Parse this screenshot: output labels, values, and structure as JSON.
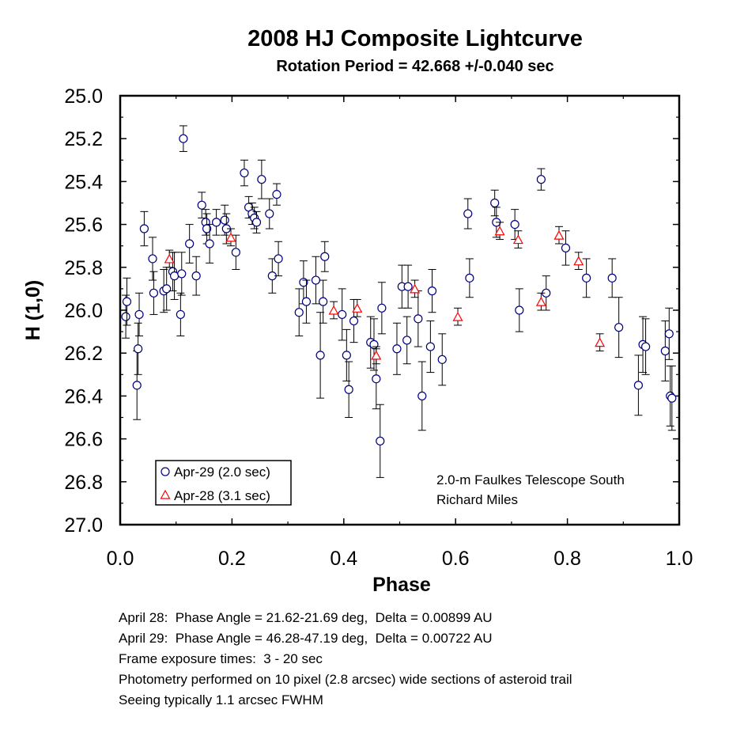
{
  "chart_data": {
    "type": "scatter",
    "title": "2008 HJ Composite Lightcurve",
    "subtitle": "Rotation Period = 42.668 +/-0.040 sec",
    "xlabel": "Phase",
    "ylabel": "H (1,0)",
    "xlim": [
      0.0,
      1.0
    ],
    "ylim": [
      27.0,
      25.0
    ],
    "y_inverted": true,
    "grid": false,
    "legend_position": "bottom-left",
    "x_ticks": [
      "0.0",
      "0.2",
      "0.4",
      "0.6",
      "0.8",
      "1.0"
    ],
    "y_ticks": [
      "25.0",
      "25.2",
      "25.4",
      "25.6",
      "25.8",
      "26.0",
      "26.2",
      "26.4",
      "26.6",
      "26.8",
      "27.0"
    ],
    "annotation": [
      "2.0-m Faulkes Telescope South",
      "Richard Miles"
    ],
    "series": [
      {
        "name": "Apr-29 (2.0 sec)",
        "marker": "circle",
        "color": "#000080",
        "points": [
          [
            0.01,
            26.03,
            0.1
          ],
          [
            0.012,
            25.96,
            0.11
          ],
          [
            0.03,
            26.35,
            0.16
          ],
          [
            0.032,
            26.18,
            0.12
          ],
          [
            0.034,
            26.02,
            0.1
          ],
          [
            0.043,
            25.62,
            0.08
          ],
          [
            0.058,
            25.76,
            0.1
          ],
          [
            0.06,
            25.92,
            0.1
          ],
          [
            0.078,
            25.91,
            0.1
          ],
          [
            0.083,
            25.9,
            0.1
          ],
          [
            0.094,
            25.82,
            0.09
          ],
          [
            0.097,
            25.84,
            0.11
          ],
          [
            0.108,
            26.02,
            0.1
          ],
          [
            0.11,
            25.83,
            0.1
          ],
          [
            0.113,
            25.2,
            0.06
          ],
          [
            0.124,
            25.69,
            0.09
          ],
          [
            0.136,
            25.84,
            0.09
          ],
          [
            0.146,
            25.51,
            0.06
          ],
          [
            0.153,
            25.59,
            0.06
          ],
          [
            0.155,
            25.62,
            0.07
          ],
          [
            0.16,
            25.69,
            0.09
          ],
          [
            0.172,
            25.59,
            0.06
          ],
          [
            0.187,
            25.58,
            0.07
          ],
          [
            0.19,
            25.62,
            0.07
          ],
          [
            0.207,
            25.73,
            0.08
          ],
          [
            0.222,
            25.36,
            0.06
          ],
          [
            0.23,
            25.52,
            0.05
          ],
          [
            0.236,
            25.55,
            0.05
          ],
          [
            0.24,
            25.57,
            0.05
          ],
          [
            0.244,
            25.59,
            0.05
          ],
          [
            0.253,
            25.39,
            0.09
          ],
          [
            0.267,
            25.55,
            0.07
          ],
          [
            0.272,
            25.84,
            0.08
          ],
          [
            0.28,
            25.46,
            0.05
          ],
          [
            0.283,
            25.76,
            0.08
          ],
          [
            0.32,
            26.01,
            0.11
          ],
          [
            0.328,
            25.87,
            0.1
          ],
          [
            0.333,
            25.96,
            0.1
          ],
          [
            0.35,
            25.86,
            0.11
          ],
          [
            0.358,
            26.21,
            0.2
          ],
          [
            0.363,
            25.96,
            0.1
          ],
          [
            0.366,
            25.75,
            0.07
          ],
          [
            0.397,
            26.02,
            0.12
          ],
          [
            0.405,
            26.21,
            0.12
          ],
          [
            0.409,
            26.37,
            0.13
          ],
          [
            0.418,
            26.05,
            0.1
          ],
          [
            0.448,
            26.15,
            0.12
          ],
          [
            0.454,
            26.16,
            0.12
          ],
          [
            0.458,
            26.32,
            0.14
          ],
          [
            0.465,
            26.61,
            0.17
          ],
          [
            0.468,
            25.99,
            0.12
          ],
          [
            0.495,
            26.18,
            0.12
          ],
          [
            0.504,
            25.89,
            0.1
          ],
          [
            0.513,
            26.14,
            0.11
          ],
          [
            0.515,
            25.89,
            0.1
          ],
          [
            0.533,
            26.04,
            0.13
          ],
          [
            0.54,
            26.4,
            0.16
          ],
          [
            0.555,
            26.17,
            0.12
          ],
          [
            0.558,
            25.91,
            0.1
          ],
          [
            0.576,
            26.23,
            0.12
          ],
          [
            0.622,
            25.55,
            0.07
          ],
          [
            0.625,
            25.85,
            0.09
          ],
          [
            0.67,
            25.5,
            0.06
          ],
          [
            0.673,
            25.59,
            0.07
          ],
          [
            0.706,
            25.6,
            0.07
          ],
          [
            0.714,
            26.0,
            0.1
          ],
          [
            0.753,
            25.39,
            0.05
          ],
          [
            0.762,
            25.92,
            0.08
          ],
          [
            0.797,
            25.71,
            0.08
          ],
          [
            0.834,
            25.85,
            0.09
          ],
          [
            0.88,
            25.85,
            0.09
          ],
          [
            0.892,
            26.08,
            0.14
          ],
          [
            0.927,
            26.35,
            0.14
          ],
          [
            0.935,
            26.16,
            0.13
          ],
          [
            0.94,
            26.17,
            0.13
          ],
          [
            0.975,
            26.19,
            0.14
          ],
          [
            0.982,
            26.11,
            0.12
          ],
          [
            0.984,
            26.4,
            0.14
          ],
          [
            0.987,
            26.41,
            0.15
          ]
        ]
      },
      {
        "name": "Apr-28 (3.1 sec)",
        "marker": "triangle",
        "color": "#ff0000",
        "points": [
          [
            0.088,
            25.76,
            0.04
          ],
          [
            0.198,
            25.66,
            0.04
          ],
          [
            0.382,
            26.0,
            0.04
          ],
          [
            0.424,
            25.99,
            0.04
          ],
          [
            0.458,
            26.21,
            0.04
          ],
          [
            0.527,
            25.9,
            0.04
          ],
          [
            0.604,
            26.03,
            0.04
          ],
          [
            0.679,
            25.63,
            0.04
          ],
          [
            0.712,
            25.67,
            0.04
          ],
          [
            0.753,
            25.96,
            0.04
          ],
          [
            0.785,
            25.65,
            0.04
          ],
          [
            0.82,
            25.77,
            0.04
          ],
          [
            0.858,
            26.15,
            0.04
          ]
        ]
      }
    ]
  },
  "notes": [
    "April 28:  Phase Angle = 21.62-21.69 deg,  Delta = 0.00899 AU",
    "April 29:  Phase Angle = 46.28-47.19 deg,  Delta = 0.00722 AU",
    "Frame exposure times:  3 - 20 sec",
    "Photometry performed on 10 pixel (2.8 arcsec) wide sections of asteroid trail",
    "Seeing typically 1.1 arcsec FWHM"
  ]
}
